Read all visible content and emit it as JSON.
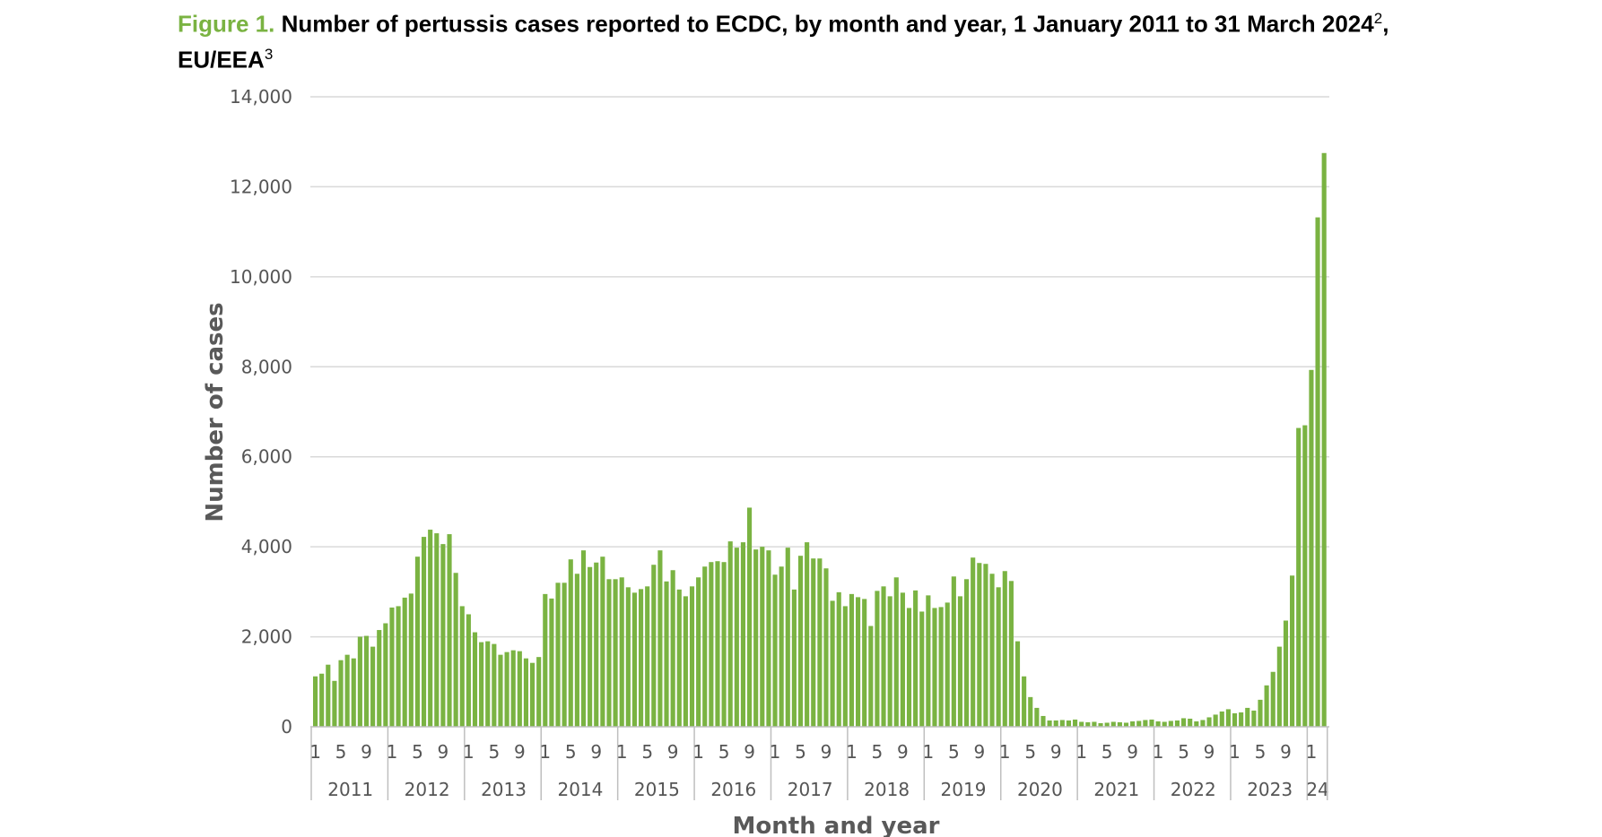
{
  "figure": {
    "label": "Figure 1.",
    "title_main": "Number of pertussis cases reported to ECDC, by month and year, 1 January 2011 to 31 March 2024",
    "footnote_1": "2",
    "title_tail": ", EU/EEA",
    "footnote_2": "3"
  },
  "colors": {
    "bar": "#7ab342",
    "grid": "#d9d9d9",
    "axis": "#bfbfbf"
  },
  "chart_data": {
    "type": "bar",
    "xlabel": "Month and year",
    "ylabel": "Number of cases",
    "ylim": [
      0,
      14000
    ],
    "yticks": [
      0,
      2000,
      4000,
      6000,
      8000,
      10000,
      12000,
      14000
    ],
    "ytick_labels": [
      "0",
      "2,000",
      "4,000",
      "6,000",
      "8,000",
      "10,000",
      "12,000",
      "14,000"
    ],
    "grid": "horizontal",
    "month_tick_labels": [
      "1",
      "5",
      "9"
    ],
    "years": [
      "2011",
      "2012",
      "2013",
      "2014",
      "2015",
      "2016",
      "2017",
      "2018",
      "2019",
      "2020",
      "2021",
      "2022",
      "2023",
      "24"
    ],
    "series": [
      {
        "values": [
          1120,
          1180,
          1380,
          1020,
          1480,
          1600,
          1520,
          2000,
          2020,
          1780,
          2150,
          2300,
          2650,
          2680,
          2870,
          2960,
          3780,
          4220,
          4380,
          4300,
          4060,
          4280,
          3420,
          2680,
          2500,
          2100,
          1880,
          1900,
          1840,
          1600,
          1660,
          1700,
          1680,
          1520,
          1420,
          1550,
          2950,
          2850,
          3200,
          3200,
          3720,
          3400,
          3920,
          3550,
          3650,
          3780,
          3280,
          3280,
          3320,
          3100,
          2980,
          3060,
          3120,
          3600,
          3920,
          3230,
          3480,
          3050,
          2900,
          3120,
          3320,
          3560,
          3660,
          3680,
          3660,
          4120,
          3980,
          4100,
          4870,
          3940,
          4000,
          3920,
          3380,
          3560,
          3980,
          3050,
          3800,
          4100,
          3740,
          3740,
          3520,
          2800,
          2990,
          2680,
          2950,
          2880,
          2840,
          2240,
          3020,
          3120,
          2900,
          3320,
          2980,
          2640,
          3030,
          2560,
          2920,
          2640,
          2660,
          2760,
          3340,
          2900,
          3280,
          3760,
          3640,
          3620,
          3400,
          3100,
          3460,
          3240,
          1900,
          1120,
          660,
          420,
          240,
          140,
          140,
          150,
          140,
          160,
          110,
          100,
          110,
          80,
          90,
          110,
          100,
          90,
          120,
          130,
          150,
          160,
          120,
          110,
          130,
          140,
          190,
          180,
          120,
          150,
          210,
          270,
          340,
          390,
          300,
          320,
          420,
          360,
          600,
          920,
          1220,
          1780,
          2360,
          3360,
          6640,
          6700,
          7930,
          11320,
          12750
        ]
      }
    ]
  }
}
